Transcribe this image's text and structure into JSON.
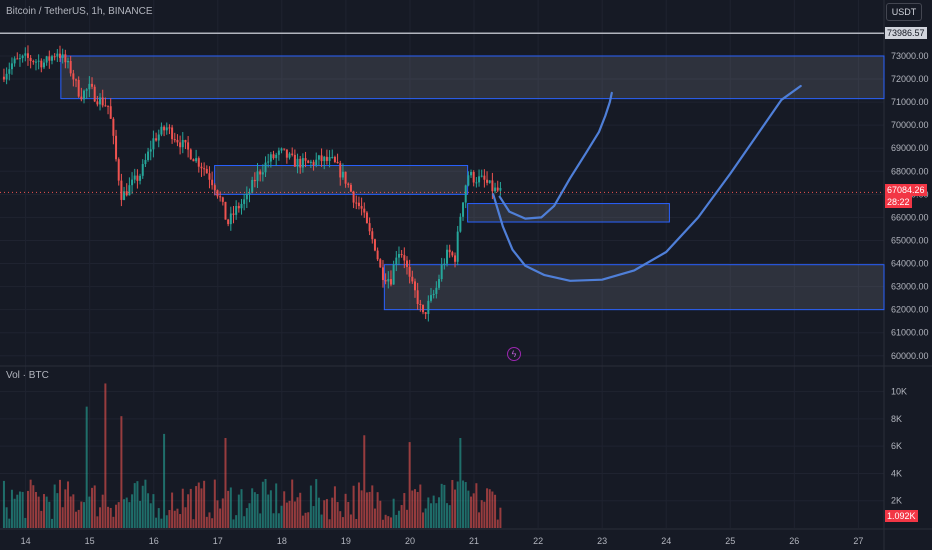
{
  "symbol": {
    "title": "Bitcoin / TetherUS, 1h, BINANCE"
  },
  "currency_button": "USDT",
  "volume_title": "Vol · BTC",
  "price_axis": {
    "ticks": [
      "73000.00",
      "72000.00",
      "71000.00",
      "70000.00",
      "69000.00",
      "68000.00",
      "67000.00",
      "66000.00",
      "65000.00",
      "64000.00",
      "63000.00",
      "62000.00",
      "61000.00",
      "60000.00"
    ],
    "high_label": "73986.57",
    "last_price": "67084.26",
    "countdown": "28:22"
  },
  "volume_axis": {
    "ticks": [
      "10K",
      "8K",
      "6K",
      "4K",
      "2K"
    ],
    "current": "1.092K"
  },
  "time_axis": {
    "ticks": [
      "14",
      "15",
      "16",
      "17",
      "18",
      "19",
      "20",
      "21",
      "22",
      "23",
      "24",
      "25",
      "26",
      "27"
    ]
  },
  "colors": {
    "background": "#161a25",
    "up": "#26a69a",
    "down": "#ef5350",
    "zone_border": "#2962ff",
    "drawing": "#4f7fd8"
  },
  "chart_data": {
    "type": "candlestick",
    "symbol": "Bitcoin / TetherUS",
    "interval": "1h",
    "exchange": "BINANCE",
    "x_range": [
      13.6,
      27.4
    ],
    "y_range": [
      59600,
      74300
    ],
    "last_price": 67084.26,
    "high_line": 73986.57,
    "price_path": [
      [
        13.62,
        72100
      ],
      [
        13.8,
        72700
      ],
      [
        14.0,
        72900
      ],
      [
        14.3,
        72700
      ],
      [
        14.5,
        73200
      ],
      [
        14.6,
        72800
      ],
      [
        14.7,
        72400
      ],
      [
        14.85,
        71300
      ],
      [
        15.0,
        71600
      ],
      [
        15.1,
        71200
      ],
      [
        15.3,
        70800
      ],
      [
        15.4,
        68700
      ],
      [
        15.5,
        66900
      ],
      [
        15.65,
        67400
      ],
      [
        15.8,
        67900
      ],
      [
        16.0,
        69400
      ],
      [
        16.2,
        69900
      ],
      [
        16.4,
        69300
      ],
      [
        16.6,
        68700
      ],
      [
        16.8,
        68100
      ],
      [
        16.95,
        67400
      ],
      [
        17.05,
        66700
      ],
      [
        17.15,
        65700
      ],
      [
        17.3,
        66400
      ],
      [
        17.45,
        66800
      ],
      [
        17.6,
        67800
      ],
      [
        17.8,
        68500
      ],
      [
        18.0,
        68800
      ],
      [
        18.2,
        68400
      ],
      [
        18.4,
        68300
      ],
      [
        18.6,
        68500
      ],
      [
        18.8,
        68400
      ],
      [
        19.0,
        67600
      ],
      [
        19.1,
        67000
      ],
      [
        19.15,
        66700
      ],
      [
        19.25,
        66300
      ],
      [
        19.35,
        65400
      ],
      [
        19.45,
        64800
      ],
      [
        19.55,
        63600
      ],
      [
        19.7,
        63300
      ],
      [
        19.8,
        64600
      ],
      [
        19.9,
        64400
      ],
      [
        20.0,
        63200
      ],
      [
        20.1,
        62600
      ],
      [
        20.2,
        61700
      ],
      [
        20.3,
        62300
      ],
      [
        20.4,
        62800
      ],
      [
        20.5,
        63900
      ],
      [
        20.6,
        64500
      ],
      [
        20.7,
        64200
      ],
      [
        20.8,
        66400
      ],
      [
        20.9,
        67900
      ],
      [
        21.0,
        67700
      ],
      [
        21.15,
        67600
      ],
      [
        21.3,
        67200
      ],
      [
        21.45,
        67084
      ]
    ],
    "volume": {
      "y_range": [
        0,
        11000
      ],
      "tallest_bars": [
        {
          "x": 14.95,
          "value": 8900
        },
        {
          "x": 15.25,
          "value": 10600
        },
        {
          "x": 15.5,
          "value": 8200
        },
        {
          "x": 16.15,
          "value": 6900
        },
        {
          "x": 17.1,
          "value": 6600
        },
        {
          "x": 19.3,
          "value": 6800
        },
        {
          "x": 20.0,
          "value": 6300
        },
        {
          "x": 20.8,
          "value": 6600
        }
      ],
      "current": 1092
    },
    "zones": [
      {
        "from_x": 14.55,
        "to_x": 27.4,
        "y_low": 71150,
        "y_high": 73000
      },
      {
        "from_x": 16.95,
        "to_x": 20.9,
        "y_low": 67000,
        "y_high": 68250
      },
      {
        "from_x": 20.9,
        "to_x": 24.05,
        "y_low": 65800,
        "y_high": 66600
      },
      {
        "from_x": 19.6,
        "to_x": 27.4,
        "y_low": 62000,
        "y_high": 63950
      }
    ],
    "drawings": [
      [
        [
          21.4,
          66900
        ],
        [
          21.55,
          66250
        ],
        [
          21.8,
          65950
        ],
        [
          22.05,
          66000
        ],
        [
          22.25,
          66500
        ],
        [
          22.5,
          67700
        ],
        [
          22.75,
          68800
        ],
        [
          22.95,
          69700
        ],
        [
          23.05,
          70400
        ],
        [
          23.12,
          71000
        ],
        [
          23.15,
          71400
        ]
      ],
      [
        [
          21.3,
          67000
        ],
        [
          21.45,
          65600
        ],
        [
          21.6,
          64600
        ],
        [
          21.8,
          63900
        ],
        [
          22.1,
          63500
        ],
        [
          22.5,
          63250
        ],
        [
          23.0,
          63300
        ],
        [
          23.5,
          63700
        ],
        [
          24.0,
          64500
        ],
        [
          24.5,
          66000
        ],
        [
          25.0,
          67900
        ],
        [
          25.4,
          69500
        ],
        [
          25.8,
          71100
        ],
        [
          26.1,
          71700
        ]
      ]
    ]
  }
}
